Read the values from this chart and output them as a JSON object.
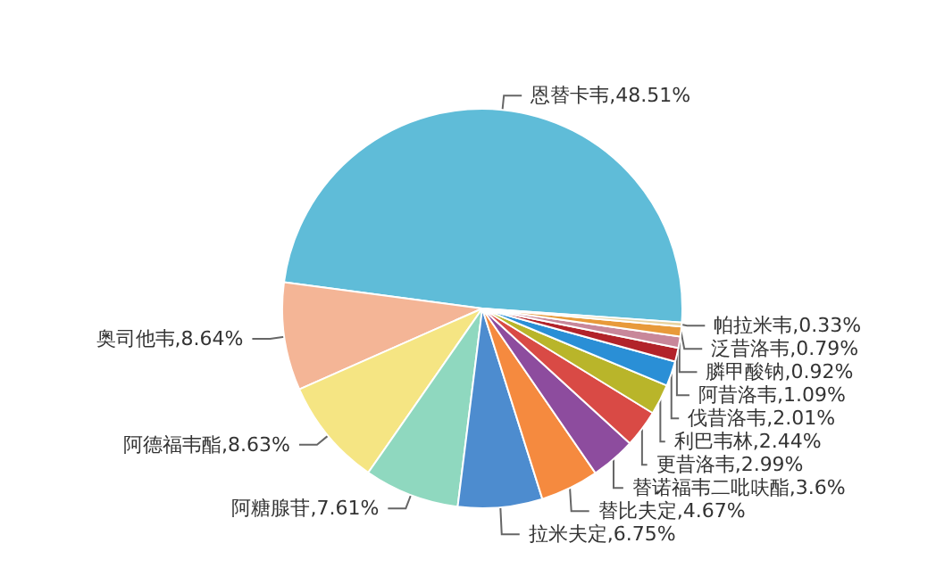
{
  "chart_data": {
    "type": "pie",
    "categories": [
      "恩替卡韦",
      "奥司他韦",
      "阿德福韦酯",
      "阿糖腺苷",
      "拉米夫定",
      "替比夫定",
      "替诺福韦二吡呋酯",
      "更昔洛韦",
      "利巴韦林",
      "伐昔洛韦",
      "阿昔洛韦",
      "膦甲酸钠",
      "泛昔洛韦",
      "帕拉米韦"
    ],
    "values": [
      48.51,
      8.64,
      8.63,
      7.61,
      6.75,
      4.67,
      3.6,
      2.99,
      2.44,
      2.01,
      1.09,
      0.92,
      0.79,
      0.33
    ],
    "value_labels": [
      "48.51%",
      "8.64%",
      "8.63%",
      "7.61%",
      "6.75%",
      "4.67%",
      "3.6%",
      "2.99%",
      "2.44%",
      "2.01%",
      "1.09%",
      "0.92%",
      "0.79%",
      "0.33%"
    ],
    "colors": [
      "#5fbcd8",
      "#f4b596",
      "#f5e583",
      "#8fd8bf",
      "#4d8ccf",
      "#f58a3f",
      "#8d4c9e",
      "#d94a45",
      "#b9b52a",
      "#2a8fd6",
      "#b2232a",
      "#c8879a",
      "#e89a3a",
      "#e8d3a0"
    ],
    "legend": false
  }
}
